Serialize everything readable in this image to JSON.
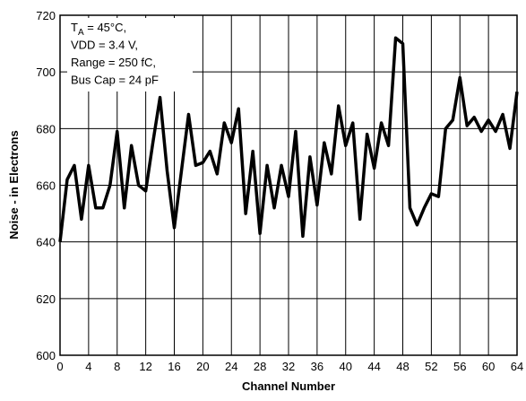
{
  "chart_data": {
    "type": "line",
    "x_label": "Channel Number",
    "y_label": "Noise - in Electrons",
    "annotation_lines": [
      [
        "T",
        "A",
        " = 45°C,"
      ],
      "VDD = 3.4 V,",
      "Range = 250 fC,",
      "Bus Cap = 24 pF"
    ],
    "x": [
      0,
      1,
      2,
      3,
      4,
      5,
      6,
      7,
      8,
      9,
      10,
      11,
      12,
      13,
      14,
      15,
      16,
      17,
      18,
      19,
      20,
      21,
      22,
      23,
      24,
      25,
      26,
      27,
      28,
      29,
      30,
      31,
      32,
      33,
      34,
      35,
      36,
      37,
      38,
      39,
      40,
      41,
      42,
      43,
      44,
      45,
      46,
      47,
      48,
      49,
      50,
      51,
      52,
      53,
      54,
      55,
      56,
      57,
      58,
      59,
      60,
      61,
      62,
      63,
      64
    ],
    "series": [
      {
        "color": "#000000",
        "values": [
          640,
          662,
          667,
          648,
          667,
          652,
          652,
          660,
          679,
          652,
          674,
          660,
          658,
          675,
          691,
          665,
          645,
          665,
          685,
          667,
          668,
          672,
          664,
          682,
          675,
          687,
          650,
          672,
          643,
          667,
          652,
          667,
          656,
          679,
          642,
          670,
          653,
          675,
          664,
          688,
          674,
          682,
          648,
          678,
          666,
          682,
          674,
          712,
          710,
          652,
          646,
          652,
          657,
          656,
          680,
          683,
          698,
          681,
          684,
          679,
          683,
          679,
          685,
          673,
          693
        ]
      }
    ],
    "xlim": [
      0,
      64
    ],
    "xticks": [
      0,
      4,
      8,
      12,
      16,
      20,
      24,
      28,
      32,
      36,
      40,
      44,
      48,
      52,
      56,
      60,
      64
    ],
    "ylim": [
      600,
      720
    ],
    "yticks": [
      600,
      620,
      640,
      660,
      680,
      700,
      720
    ],
    "grid": true
  }
}
